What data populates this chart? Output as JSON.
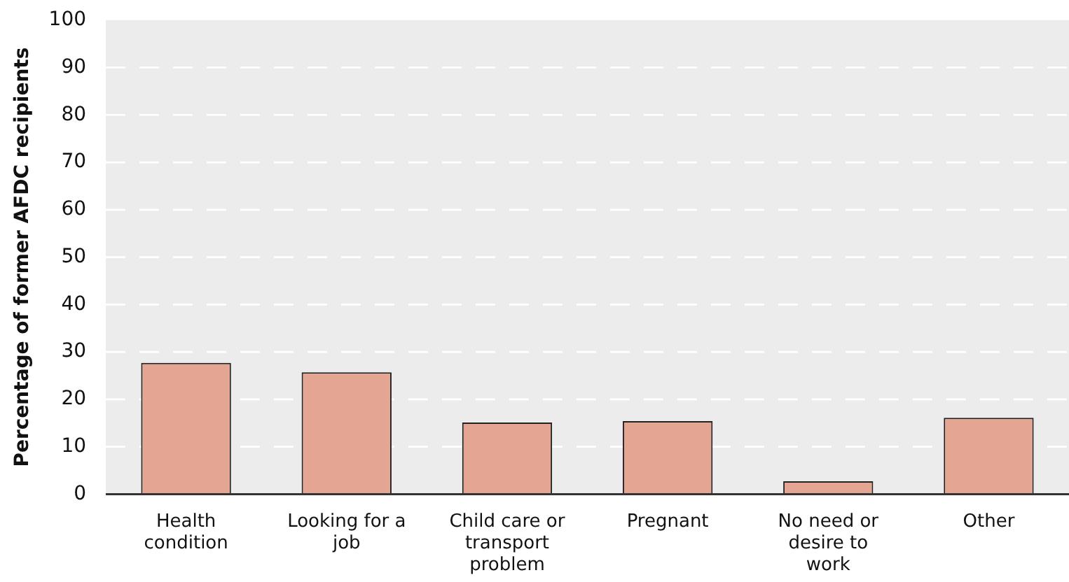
{
  "chart_data": {
    "type": "bar",
    "ylabel": "Percentage of former AFDC recipients",
    "categories": [
      "Health condition",
      "Looking for a job",
      "Child care or transport problem",
      "Pregnant",
      "No need or desire to work",
      "Other"
    ],
    "values": [
      27.7,
      25.7,
      15.1,
      15.4,
      2.7,
      16.1
    ],
    "color": "#e4a592",
    "ylim": [
      0,
      100
    ],
    "yticks": [
      0,
      10,
      20,
      30,
      40,
      50,
      60,
      70,
      80,
      90,
      100
    ],
    "grid": "y"
  }
}
